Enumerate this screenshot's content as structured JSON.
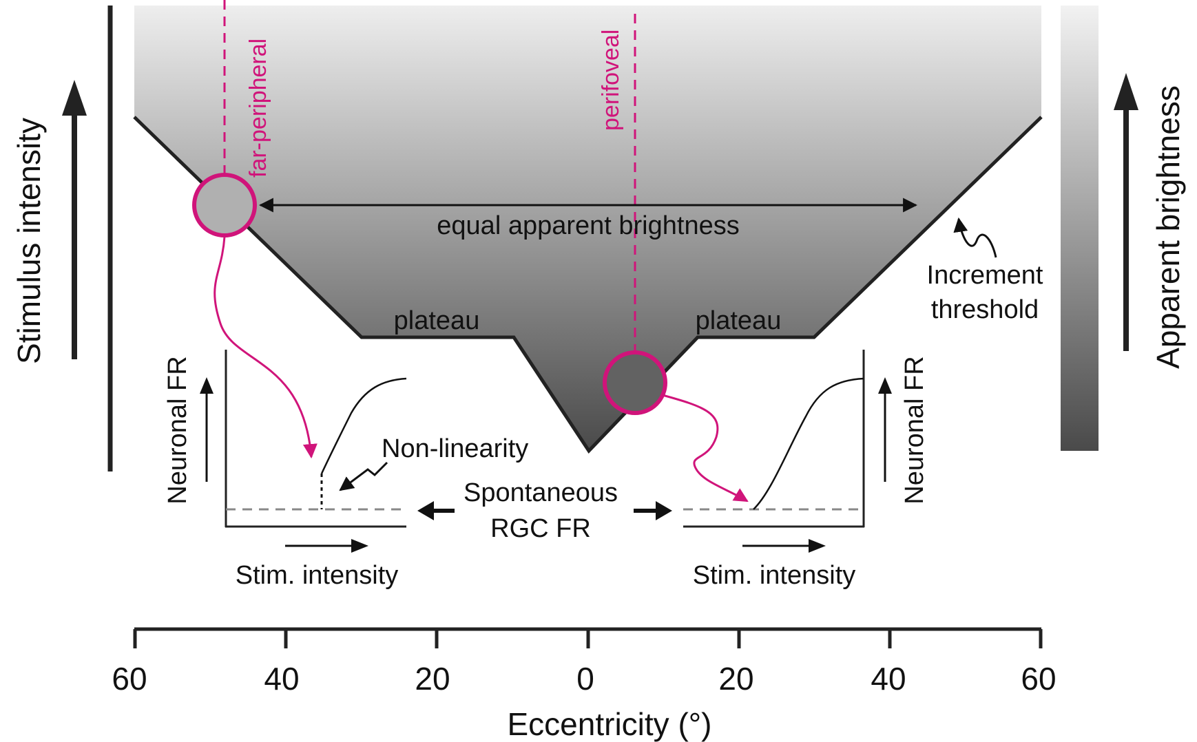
{
  "labels": {
    "stimulus_intensity": "Stimulus intensity",
    "apparent_brightness": "Apparent brightness",
    "far_peripheral": "far-peripheral",
    "perifoveal": "perifoveal",
    "equal_apparent_brightness": "equal apparent brightness",
    "increment": "Increment",
    "threshold": "threshold",
    "plateau_left": "plateau",
    "plateau_right": "plateau",
    "neuronal_fr_left": "Neuronal FR",
    "neuronal_fr_right": "Neuronal FR",
    "non_linearity": "Non-linearity",
    "spontaneous": "Spontaneous",
    "rgc_fr": "RGC FR",
    "stim_intensity_left": "Stim. intensity",
    "stim_intensity_right": "Stim. intensity",
    "x_axis_title": "Eccentricity (°)"
  },
  "x_axis": {
    "ticks": [
      "60",
      "40",
      "20",
      "0",
      "20",
      "40",
      "60"
    ]
  },
  "colors": {
    "accent_magenta": "#d0147a",
    "gradient_top": "#eeeeee",
    "gradient_bottom": "#4a4a4a",
    "line": "#222222"
  }
}
